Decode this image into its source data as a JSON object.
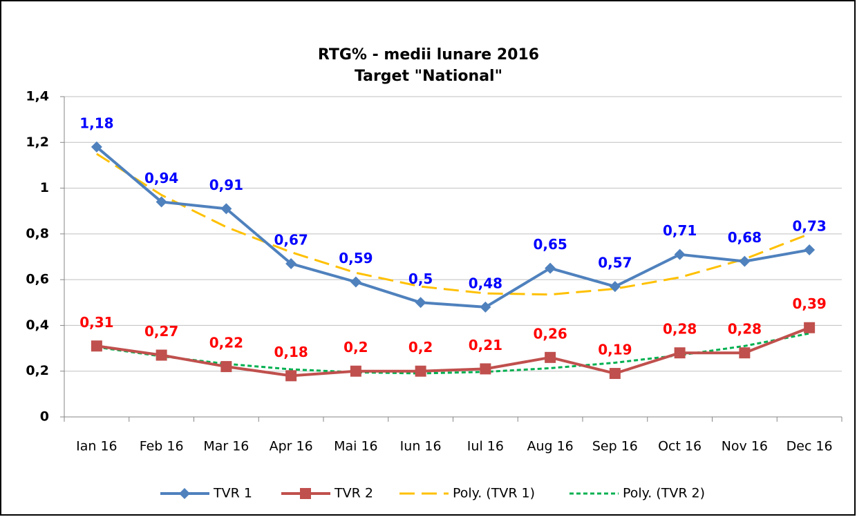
{
  "chart_data": {
    "type": "line",
    "title": "RTG% - medii lunare 2016",
    "subtitle": "Target \"National\"",
    "categories": [
      "Ian 16",
      "Feb 16",
      "Mar 16",
      "Apr 16",
      "Mai 16",
      "Iun 16",
      "Iul 16",
      "Aug 16",
      "Sep 16",
      "Oct 16",
      "Nov 16",
      "Dec 16"
    ],
    "ylim": [
      0,
      1.4
    ],
    "yticks": [
      0,
      {
        "value": 0.2,
        "label": "0,2"
      },
      {
        "value": 0.4,
        "label": "0,4"
      },
      {
        "value": 0.6,
        "label": "0,6"
      },
      {
        "value": 0.8,
        "label": "0,8"
      },
      1,
      {
        "value": 1.2,
        "label": "1,2"
      },
      {
        "value": 1.4,
        "label": "1,4"
      }
    ],
    "grid": true,
    "legend": "bottom",
    "series": [
      {
        "name": "TVR 1",
        "color": "#4f81bd",
        "marker": "diamond",
        "label_color": "#0000ff",
        "values": [
          1.18,
          0.94,
          0.91,
          0.67,
          0.59,
          0.5,
          0.48,
          0.65,
          0.57,
          0.71,
          0.68,
          0.73
        ],
        "value_labels": [
          "1,18",
          "0,94",
          "0,91",
          "0,67",
          "0,59",
          "0,5",
          "0,48",
          "0,65",
          "0,57",
          "0,71",
          "0,68",
          "0,73"
        ]
      },
      {
        "name": "TVR 2",
        "color": "#c0504d",
        "marker": "square",
        "label_color": "#ff0000",
        "values": [
          0.31,
          0.27,
          0.22,
          0.18,
          0.2,
          0.2,
          0.21,
          0.26,
          0.19,
          0.28,
          0.28,
          0.39
        ],
        "value_labels": [
          "0,31",
          "0,27",
          "0,22",
          "0,18",
          "0,2",
          "0,2",
          "0,21",
          "0,26",
          "0,19",
          "0,28",
          "0,28",
          "0,39"
        ]
      },
      {
        "name": "Poly. (TVR 1)",
        "color": "#ffc000",
        "dash": "long",
        "values": [
          1.15,
          0.97,
          0.83,
          0.72,
          0.63,
          0.57,
          0.54,
          0.535,
          0.56,
          0.61,
          0.69,
          0.8
        ]
      },
      {
        "name": "Poly. (TVR 2)",
        "color": "#00b050",
        "dash": "short",
        "values": [
          0.305,
          0.265,
          0.232,
          0.208,
          0.195,
          0.19,
          0.197,
          0.213,
          0.237,
          0.27,
          0.31,
          0.365
        ]
      }
    ]
  }
}
